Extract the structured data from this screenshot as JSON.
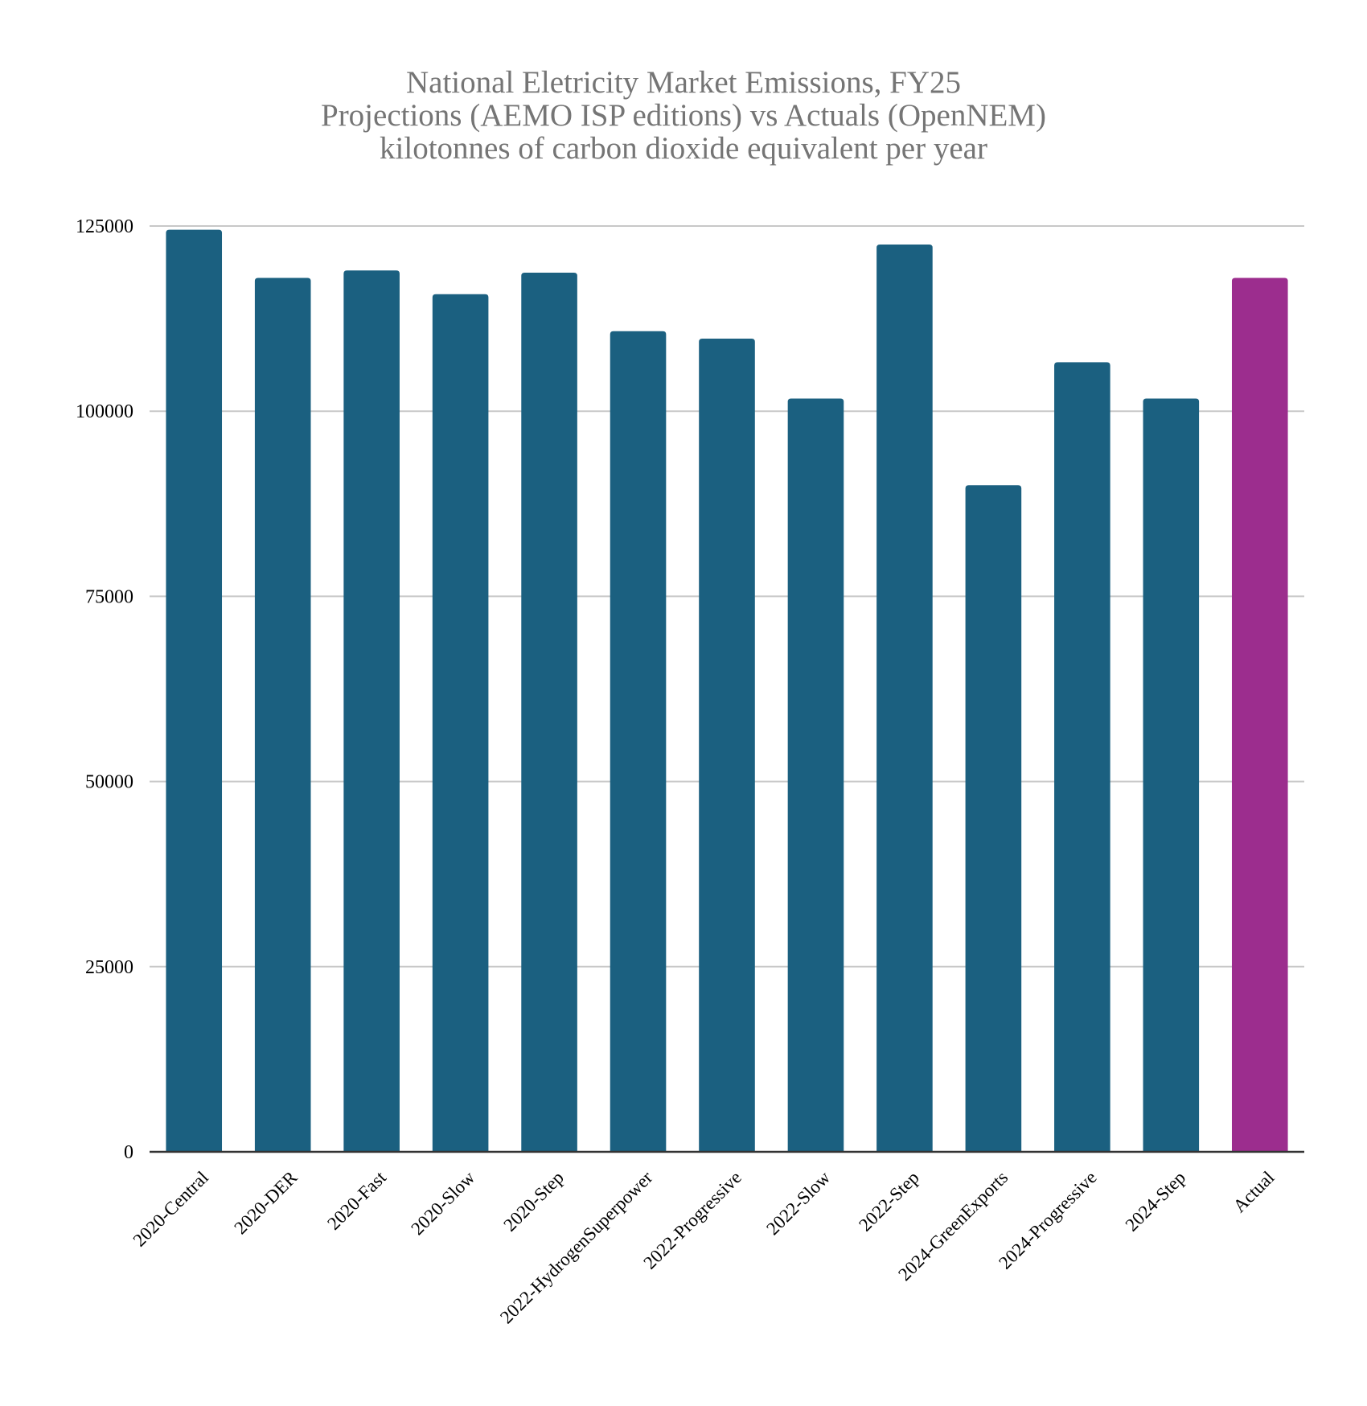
{
  "chart_data": {
    "type": "bar",
    "title_lines": [
      "National Eletricity Market Emissions, FY25",
      "Projections (AEMO ISP editions) vs Actuals (OpenNEM)",
      "kilotonnes of carbon dioxide equivalent per year"
    ],
    "categories": [
      "2020-Central",
      "2020-DER",
      "2020-Fast",
      "2020-Slow",
      "2020-Step",
      "2022-HydrogenSuperpower",
      "2022-Progressive",
      "2022-Slow",
      "2022-Step",
      "2024-GreenExports",
      "2024-Progressive",
      "2024-Step",
      "Actual"
    ],
    "values": [
      124500,
      118000,
      119000,
      115800,
      118700,
      110800,
      109800,
      101700,
      122500,
      90000,
      106600,
      101700,
      118000
    ],
    "bar_colors": [
      "#1b6080",
      "#1b6080",
      "#1b6080",
      "#1b6080",
      "#1b6080",
      "#1b6080",
      "#1b6080",
      "#1b6080",
      "#1b6080",
      "#1b6080",
      "#1b6080",
      "#1b6080",
      "#9c2d8e"
    ],
    "y_ticks": [
      0,
      25000,
      50000,
      75000,
      100000,
      125000
    ],
    "ylim": [
      0,
      125000
    ],
    "xlabel": "",
    "ylabel": "",
    "grid": true,
    "legend": "none",
    "gridline_color": "#c8c8c8",
    "axis_color": "#333333"
  }
}
